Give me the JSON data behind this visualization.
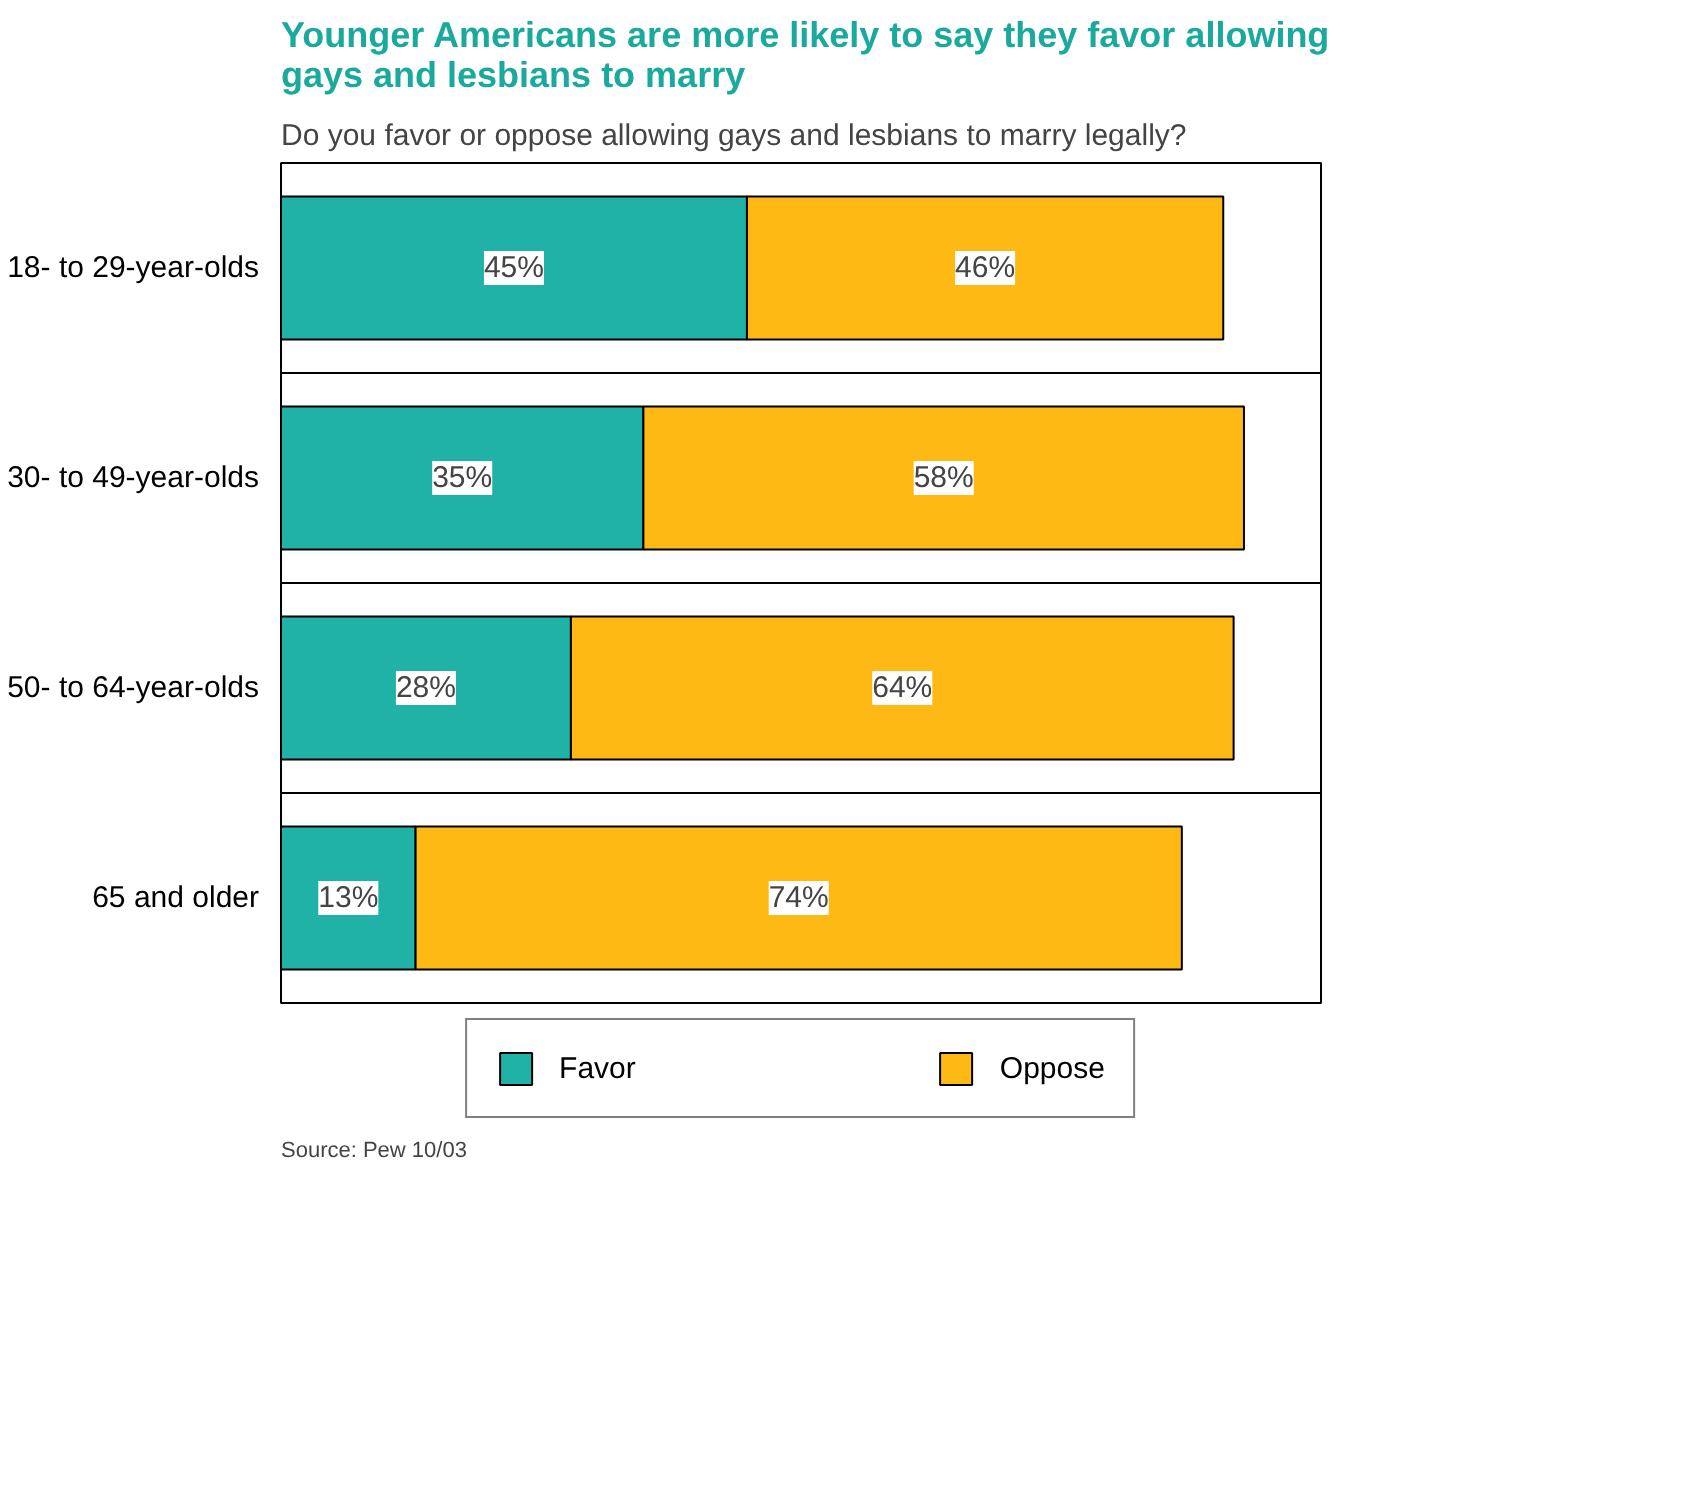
{
  "chart_data": {
    "type": "bar",
    "orientation": "horizontal",
    "stacked": true,
    "title": "Younger Americans are more likely to say they favor allowing gays and lesbians to marry",
    "subtitle": "Do you favor or oppose allowing gays and lesbians to marry legally?",
    "categories": [
      "18- to 29-year-olds",
      "30- to 49-year-olds",
      "50- to 64-year-olds",
      "65 and older"
    ],
    "series": [
      {
        "name": "Favor",
        "color": "#20b2a6",
        "values": [
          45,
          35,
          28,
          13
        ],
        "value_labels": [
          "45%",
          "35%",
          "28%",
          "13%"
        ]
      },
      {
        "name": "Oppose",
        "color": "#ffb914",
        "values": [
          46,
          58,
          64,
          74
        ],
        "value_labels": [
          "46%",
          "58%",
          "64%",
          "74%"
        ]
      }
    ],
    "tick_labels": "y",
    "grid": "y",
    "legend": "bottom",
    "annotations": [
      "Source: Pew 10/03"
    ]
  }
}
